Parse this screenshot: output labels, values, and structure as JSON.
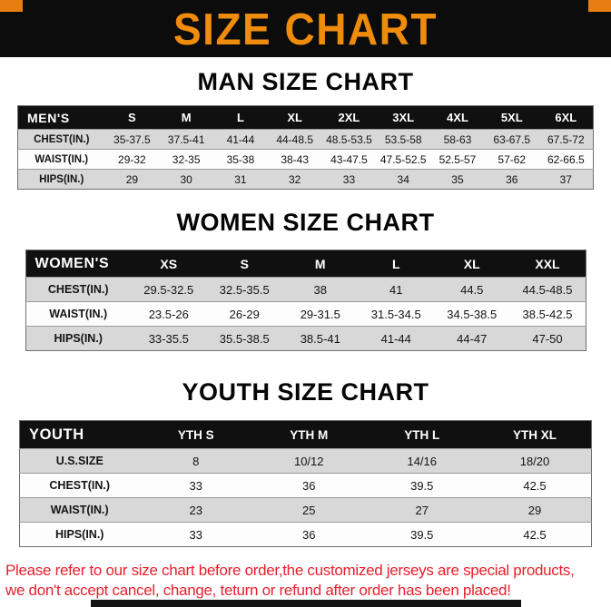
{
  "banner": {
    "title": "SIZE CHART",
    "background": "#0c0c0c",
    "accent_color": "#f08c0c"
  },
  "sections": [
    {
      "id": "man",
      "heading": "MAN SIZE CHART",
      "table": {
        "label": "MEN'S",
        "columns": [
          "S",
          "M",
          "L",
          "XL",
          "2XL",
          "3XL",
          "4XL",
          "5XL",
          "6XL"
        ],
        "rows": [
          {
            "label": "CHEST(IN.)",
            "values": [
              "35-37.5",
              "37.5-41",
              "41-44",
              "44-48.5",
              "48.5-53.5",
              "53.5-58",
              "58-63",
              "63-67.5",
              "67.5-72"
            ]
          },
          {
            "label": "WAIST(IN.)",
            "values": [
              "29-32",
              "32-35",
              "35-38",
              "38-43",
              "43-47.5",
              "47.5-52.5",
              "52.5-57",
              "57-62",
              "62-66.5"
            ]
          },
          {
            "label": "HIPS(IN.)",
            "values": [
              "29",
              "30",
              "31",
              "32",
              "33",
              "34",
              "35",
              "36",
              "37"
            ]
          }
        ]
      }
    },
    {
      "id": "women",
      "heading": "WOMEN SIZE CHART",
      "table": {
        "label": "WOMEN'S",
        "columns": [
          "XS",
          "S",
          "M",
          "L",
          "XL",
          "XXL"
        ],
        "rows": [
          {
            "label": "CHEST(IN.)",
            "values": [
              "29.5-32.5",
              "32.5-35.5",
              "38",
              "41",
              "44.5",
              "44.5-48.5"
            ]
          },
          {
            "label": "WAIST(IN.)",
            "values": [
              "23.5-26",
              "26-29",
              "29-31.5",
              "31.5-34.5",
              "34.5-38.5",
              "38.5-42.5"
            ]
          },
          {
            "label": "HIPS(IN.)",
            "values": [
              "33-35.5",
              "35.5-38.5",
              "38.5-41",
              "41-44",
              "44-47",
              "47-50"
            ]
          }
        ]
      }
    },
    {
      "id": "youth",
      "heading": "YOUTH SIZE CHART",
      "table": {
        "label": "YOUTH",
        "columns": [
          "YTH S",
          "YTH M",
          "YTH L",
          "YTH XL"
        ],
        "rows": [
          {
            "label": "U.S.SIZE",
            "values": [
              "8",
              "10/12",
              "14/16",
              "18/20"
            ]
          },
          {
            "label": "CHEST(IN.)",
            "values": [
              "33",
              "36",
              "39.5",
              "42.5"
            ]
          },
          {
            "label": "WAIST(IN.)",
            "values": [
              "23",
              "25",
              "27",
              "29"
            ]
          },
          {
            "label": "HIPS(IN.)",
            "values": [
              "33",
              "36",
              "39.5",
              "42.5"
            ]
          }
        ]
      }
    }
  ],
  "footer": {
    "text_color": "#e81f2c",
    "line1": "Please refer to our size chart before order,the customized jerseys are special products,",
    "line2": "we don't accept cancel, change, teturn or refund after order has been placed!"
  },
  "chart_data": [
    {
      "type": "table",
      "title": "MAN SIZE CHART",
      "columns": [
        "MEN'S",
        "S",
        "M",
        "L",
        "XL",
        "2XL",
        "3XL",
        "4XL",
        "5XL",
        "6XL"
      ],
      "rows": [
        [
          "CHEST(IN.)",
          "35-37.5",
          "37.5-41",
          "41-44",
          "44-48.5",
          "48.5-53.5",
          "53.5-58",
          "58-63",
          "63-67.5",
          "67.5-72"
        ],
        [
          "WAIST(IN.)",
          "29-32",
          "32-35",
          "35-38",
          "38-43",
          "43-47.5",
          "47.5-52.5",
          "52.5-57",
          "57-62",
          "62-66.5"
        ],
        [
          "HIPS(IN.)",
          "29",
          "30",
          "31",
          "32",
          "33",
          "34",
          "35",
          "36",
          "37"
        ]
      ]
    },
    {
      "type": "table",
      "title": "WOMEN SIZE CHART",
      "columns": [
        "WOMEN'S",
        "XS",
        "S",
        "M",
        "L",
        "XL",
        "XXL"
      ],
      "rows": [
        [
          "CHEST(IN.)",
          "29.5-32.5",
          "32.5-35.5",
          "38",
          "41",
          "44.5",
          "44.5-48.5"
        ],
        [
          "WAIST(IN.)",
          "23.5-26",
          "26-29",
          "29-31.5",
          "31.5-34.5",
          "34.5-38.5",
          "38.5-42.5"
        ],
        [
          "HIPS(IN.)",
          "33-35.5",
          "35.5-38.5",
          "38.5-41",
          "41-44",
          "44-47",
          "47-50"
        ]
      ]
    },
    {
      "type": "table",
      "title": "YOUTH SIZE CHART",
      "columns": [
        "YOUTH",
        "YTH S",
        "YTH M",
        "YTH L",
        "YTH XL"
      ],
      "rows": [
        [
          "U.S.SIZE",
          "8",
          "10/12",
          "14/16",
          "18/20"
        ],
        [
          "CHEST(IN.)",
          "33",
          "36",
          "39.5",
          "42.5"
        ],
        [
          "WAIST(IN.)",
          "23",
          "25",
          "27",
          "29"
        ],
        [
          "HIPS(IN.)",
          "33",
          "36",
          "39.5",
          "42.5"
        ]
      ]
    }
  ]
}
